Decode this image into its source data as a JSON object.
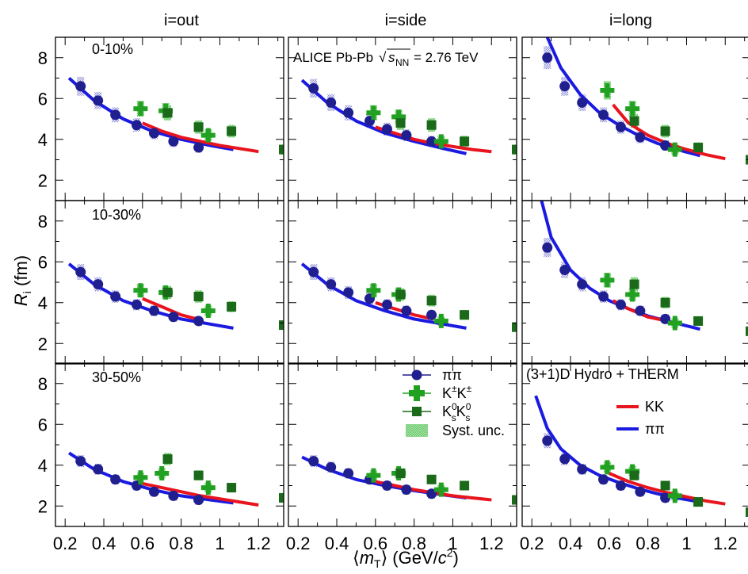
{
  "axis": {
    "xlabel": "⟨m_T⟩ (GeV/c²)",
    "ylabel": "R_i (fm)",
    "xlim": [
      0.15,
      1.33
    ],
    "ylim": [
      1.0,
      9.0
    ],
    "xticks": [
      0.2,
      0.4,
      0.6,
      0.8,
      1.0,
      1.2
    ],
    "xtick_labels": [
      "0.2",
      "0.4",
      "0.6",
      "0.8",
      "1",
      "1.2"
    ],
    "yticks": [
      2,
      4,
      6,
      8
    ],
    "ytick_labels": [
      "2",
      "4",
      "6",
      "8"
    ]
  },
  "columns": [
    "i=out",
    "i=side",
    "i=long"
  ],
  "rows": [
    "0-10%",
    "10-30%",
    "30-50%"
  ],
  "annotations": {
    "collaboration": "ALICE Pb-Pb",
    "energy": "= 2.76 TeV",
    "model": "(3+1)D Hydro + THERM"
  },
  "legend_data": {
    "pipi": "ππ",
    "kk_charged": "K±K±",
    "k0k0": "K0sK0s",
    "syst": "Syst. unc."
  },
  "legend_model": {
    "kk": "KK",
    "pipi": "ππ"
  },
  "colors": {
    "pipi_data": "#1f1f8f",
    "kk_charged_data": "#22a022",
    "k0k0_data": "#1a6a1a",
    "syst": "#7fd07f",
    "model_kk": "#e8141e",
    "model_pipi": "#1a1ae0"
  },
  "chart_data": {
    "type": "scatter",
    "panels": [
      {
        "row": 0,
        "col": 0,
        "pipi": {
          "x": [
            0.28,
            0.37,
            0.46,
            0.57,
            0.66,
            0.76,
            0.89
          ],
          "y": [
            6.6,
            5.9,
            5.2,
            4.7,
            4.3,
            3.9,
            3.6
          ]
        },
        "kk_charged": {
          "x": [
            0.59,
            0.72,
            0.94
          ],
          "y": [
            5.5,
            5.4,
            4.2
          ]
        },
        "k0k0": {
          "x": [
            0.73,
            0.89,
            1.06,
            1.33
          ],
          "y": [
            5.3,
            4.6,
            4.4,
            3.5
          ]
        },
        "model_pipi": {
          "x": [
            0.22,
            0.35,
            0.5,
            0.65,
            0.8,
            0.95,
            1.07
          ],
          "y": [
            7.0,
            5.9,
            5.0,
            4.4,
            4.0,
            3.7,
            3.5
          ]
        },
        "model_kk": {
          "x": [
            0.6,
            0.7,
            0.8,
            0.9,
            1.0,
            1.1,
            1.2
          ],
          "y": [
            4.8,
            4.4,
            4.1,
            3.9,
            3.7,
            3.55,
            3.4
          ]
        }
      },
      {
        "row": 0,
        "col": 1,
        "pipi": {
          "x": [
            0.28,
            0.37,
            0.46,
            0.57,
            0.66,
            0.76,
            0.89
          ],
          "y": [
            6.5,
            5.8,
            5.3,
            4.9,
            4.5,
            4.2,
            3.9
          ]
        },
        "kk_charged": {
          "x": [
            0.59,
            0.72,
            0.94
          ],
          "y": [
            5.3,
            5.1,
            3.9
          ]
        },
        "k0k0": {
          "x": [
            0.73,
            0.89,
            1.06,
            1.33
          ],
          "y": [
            4.8,
            4.7,
            3.9,
            3.5
          ]
        },
        "model_pipi": {
          "x": [
            0.22,
            0.35,
            0.5,
            0.65,
            0.8,
            0.95,
            1.07
          ],
          "y": [
            6.9,
            5.8,
            4.9,
            4.3,
            3.9,
            3.55,
            3.3
          ]
        },
        "model_kk": {
          "x": [
            0.6,
            0.7,
            0.8,
            0.9,
            1.0,
            1.1,
            1.2
          ],
          "y": [
            4.6,
            4.3,
            4.0,
            3.8,
            3.65,
            3.5,
            3.4
          ]
        }
      },
      {
        "row": 0,
        "col": 2,
        "pipi": {
          "x": [
            0.28,
            0.37,
            0.46,
            0.57,
            0.66,
            0.76,
            0.89
          ],
          "y": [
            8.0,
            6.6,
            5.8,
            5.2,
            4.6,
            4.1,
            3.7
          ]
        },
        "kk_charged": {
          "x": [
            0.59,
            0.72,
            0.94
          ],
          "y": [
            6.4,
            5.5,
            3.5
          ]
        },
        "k0k0": {
          "x": [
            0.73,
            0.89,
            1.06,
            1.33
          ],
          "y": [
            4.9,
            4.4,
            3.6,
            3.0
          ]
        },
        "model_pipi": {
          "x": [
            0.28,
            0.35,
            0.45,
            0.55,
            0.65,
            0.75,
            0.85,
            0.95,
            1.07
          ],
          "y": [
            9.0,
            7.5,
            6.2,
            5.3,
            4.7,
            4.2,
            3.8,
            3.5,
            3.2
          ]
        },
        "model_kk": {
          "x": [
            0.62,
            0.7,
            0.8,
            0.9,
            1.0,
            1.1,
            1.2
          ],
          "y": [
            5.7,
            4.8,
            4.2,
            3.8,
            3.5,
            3.25,
            3.05
          ]
        }
      },
      {
        "row": 1,
        "col": 0,
        "pipi": {
          "x": [
            0.28,
            0.37,
            0.46,
            0.57,
            0.66,
            0.76,
            0.89
          ],
          "y": [
            5.5,
            4.9,
            4.3,
            3.9,
            3.6,
            3.3,
            3.1
          ]
        },
        "kk_charged": {
          "x": [
            0.59,
            0.72,
            0.94
          ],
          "y": [
            4.6,
            4.5,
            3.6
          ]
        },
        "k0k0": {
          "x": [
            0.73,
            0.89,
            1.06,
            1.33
          ],
          "y": [
            4.5,
            4.3,
            3.8,
            2.9
          ]
        },
        "model_pipi": {
          "x": [
            0.22,
            0.35,
            0.5,
            0.65,
            0.8,
            0.95,
            1.07
          ],
          "y": [
            5.9,
            4.9,
            4.1,
            3.6,
            3.2,
            2.95,
            2.75
          ]
        },
        "model_kk": {
          "x": [
            0.6,
            0.7,
            0.8,
            0.9
          ],
          "y": [
            4.2,
            3.8,
            3.4,
            3.15
          ]
        }
      },
      {
        "row": 1,
        "col": 1,
        "pipi": {
          "x": [
            0.28,
            0.37,
            0.46,
            0.57,
            0.66,
            0.76,
            0.89
          ],
          "y": [
            5.5,
            4.9,
            4.5,
            4.2,
            3.9,
            3.6,
            3.4
          ]
        },
        "kk_charged": {
          "x": [
            0.59,
            0.72,
            0.94
          ],
          "y": [
            4.6,
            4.4,
            3.1
          ]
        },
        "k0k0": {
          "x": [
            0.73,
            0.89,
            1.06,
            1.33
          ],
          "y": [
            4.4,
            4.1,
            3.4,
            2.8
          ]
        },
        "model_pipi": {
          "x": [
            0.22,
            0.35,
            0.5,
            0.65,
            0.8,
            0.95,
            1.07
          ],
          "y": [
            5.9,
            4.9,
            4.1,
            3.6,
            3.2,
            2.95,
            2.75
          ]
        },
        "model_kk": {
          "x": [
            0.6,
            0.7,
            0.8,
            0.9
          ],
          "y": [
            4.0,
            3.7,
            3.4,
            3.2
          ]
        }
      },
      {
        "row": 1,
        "col": 2,
        "pipi": {
          "x": [
            0.28,
            0.37,
            0.46,
            0.57,
            0.66,
            0.76,
            0.89
          ],
          "y": [
            6.7,
            5.6,
            4.9,
            4.3,
            3.9,
            3.6,
            3.2
          ]
        },
        "kk_charged": {
          "x": [
            0.59,
            0.72,
            0.94
          ],
          "y": [
            5.1,
            4.4,
            3.0
          ]
        },
        "k0k0": {
          "x": [
            0.73,
            0.89,
            1.06,
            1.33
          ],
          "y": [
            4.9,
            4.0,
            3.1,
            2.6
          ]
        },
        "model_pipi": {
          "x": [
            0.25,
            0.3,
            0.4,
            0.5,
            0.6,
            0.7,
            0.8,
            0.9,
            1.07
          ],
          "y": [
            9.0,
            7.2,
            5.6,
            4.7,
            4.1,
            3.7,
            3.35,
            3.1,
            2.7
          ]
        },
        "model_kk": {
          "x": [
            0.62,
            0.7,
            0.8,
            0.9
          ],
          "y": [
            4.1,
            3.7,
            3.3,
            3.1
          ]
        }
      },
      {
        "row": 2,
        "col": 0,
        "pipi": {
          "x": [
            0.28,
            0.37,
            0.46,
            0.57,
            0.66,
            0.76,
            0.89
          ],
          "y": [
            4.2,
            3.8,
            3.3,
            3.0,
            2.7,
            2.5,
            2.3
          ]
        },
        "kk_charged": {
          "x": [
            0.59,
            0.7,
            0.94
          ],
          "y": [
            3.4,
            3.6,
            2.9
          ]
        },
        "k0k0": {
          "x": [
            0.73,
            0.89,
            1.06,
            1.33
          ],
          "y": [
            4.3,
            3.5,
            2.9,
            2.4
          ]
        },
        "model_pipi": {
          "x": [
            0.22,
            0.35,
            0.5,
            0.65,
            0.8,
            0.95,
            1.07
          ],
          "y": [
            4.6,
            3.8,
            3.2,
            2.8,
            2.5,
            2.3,
            2.15
          ]
        },
        "model_kk": {
          "x": [
            0.6,
            0.7,
            0.8,
            0.9,
            1.0,
            1.1,
            1.2
          ],
          "y": [
            3.1,
            2.9,
            2.7,
            2.5,
            2.35,
            2.2,
            2.05
          ]
        }
      },
      {
        "row": 2,
        "col": 1,
        "pipi": {
          "x": [
            0.28,
            0.37,
            0.46,
            0.57,
            0.66,
            0.76,
            0.89
          ],
          "y": [
            4.2,
            3.9,
            3.6,
            3.3,
            3.0,
            2.8,
            2.6
          ]
        },
        "kk_charged": {
          "x": [
            0.59,
            0.72,
            0.94
          ],
          "y": [
            3.5,
            3.6,
            2.8
          ]
        },
        "k0k0": {
          "x": [
            0.73,
            0.89,
            1.06,
            1.33
          ],
          "y": [
            3.6,
            3.3,
            3.0,
            2.3
          ]
        },
        "model_pipi": {
          "x": [
            0.22,
            0.35,
            0.5,
            0.65,
            0.8,
            0.95,
            1.07
          ],
          "y": [
            4.4,
            3.8,
            3.3,
            3.0,
            2.75,
            2.55,
            2.4
          ]
        },
        "model_kk": {
          "x": [
            0.6,
            0.7,
            0.8,
            0.9,
            1.0,
            1.1,
            1.2
          ],
          "y": [
            3.2,
            3.0,
            2.8,
            2.65,
            2.5,
            2.4,
            2.3
          ]
        }
      },
      {
        "row": 2,
        "col": 2,
        "pipi": {
          "x": [
            0.28,
            0.37,
            0.46,
            0.57,
            0.66,
            0.76,
            0.89
          ],
          "y": [
            5.2,
            4.3,
            3.8,
            3.3,
            3.0,
            2.7,
            2.4
          ]
        },
        "kk_charged": {
          "x": [
            0.59,
            0.72,
            0.94
          ],
          "y": [
            3.9,
            3.7,
            2.5
          ]
        },
        "k0k0": {
          "x": [
            0.73,
            0.89,
            1.06,
            1.33
          ],
          "y": [
            3.5,
            3.0,
            2.2,
            1.7
          ]
        },
        "model_pipi": {
          "x": [
            0.22,
            0.28,
            0.35,
            0.45,
            0.55,
            0.65,
            0.75,
            0.85,
            0.95,
            1.07
          ],
          "y": [
            7.4,
            5.8,
            4.8,
            4.0,
            3.5,
            3.15,
            2.85,
            2.6,
            2.4,
            2.2
          ]
        },
        "model_kk": {
          "x": [
            0.6,
            0.7,
            0.8,
            0.9,
            1.0,
            1.1,
            1.2
          ],
          "y": [
            3.6,
            3.2,
            2.9,
            2.65,
            2.45,
            2.25,
            2.1
          ]
        }
      }
    ]
  }
}
